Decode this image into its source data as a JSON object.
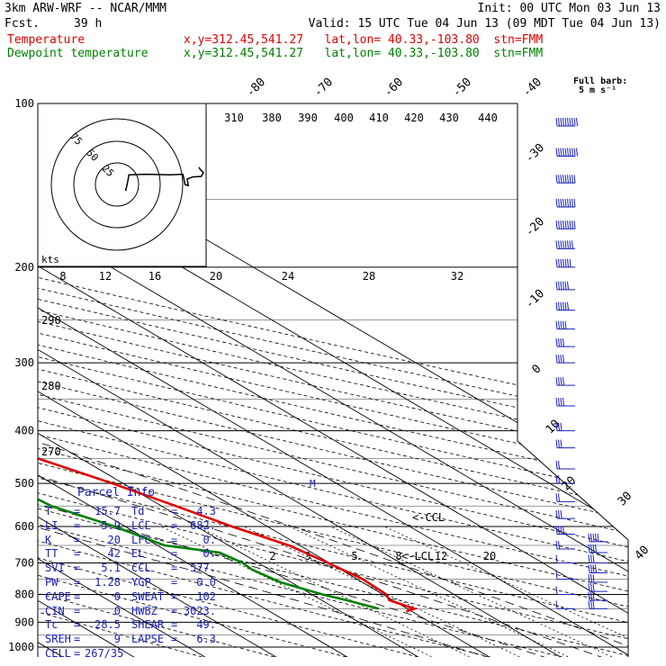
{
  "header": {
    "model": "3km ARW-WRF -- NCAR/MMM",
    "init": "Init: 00 UTC Mon 03 Jun 13",
    "fcst_label": "Fcst.",
    "fcst_value": "39 h",
    "valid": "Valid: 15 UTC Tue 04 Jun 13 (09 MDT Tue 04 Jun 13)",
    "series": [
      {
        "name": "Temperature",
        "location": "x,y=312.45,541.27   lat,lon= 40.33,-103.80  stn=FMM",
        "color": "#e00000"
      },
      {
        "name": "Dewpoint temperature",
        "location": "x,y=312.45,541.27   lat,lon= 40.33,-103.80  stn=FMM",
        "color": "#008000"
      }
    ]
  },
  "colors": {
    "temperature": "#e00000",
    "dewpoint": "#008000",
    "axis": "#000000",
    "parcel_text": "#1a20b8",
    "hodograph": "#000000",
    "barbs": "#1a20b8"
  },
  "barb_legend": {
    "line1": "Full barb:",
    "line2": "5 m s⁻¹"
  },
  "chart_data": {
    "type": "line",
    "title": "",
    "ylabel_ticks": [
      100,
      200,
      300,
      400,
      500,
      600,
      700,
      800,
      900,
      1000
    ],
    "isotherm_labels_top": [
      "-80",
      "-70",
      "-60",
      "-50",
      "-40"
    ],
    "isotherm_labels_right": [
      "-30",
      "-20",
      "-10",
      "0",
      "10",
      "20",
      "30",
      "40"
    ],
    "theta_e_labels": [
      "310",
      "380",
      "390",
      "400",
      "410",
      "420",
      "430",
      "440"
    ],
    "theta_labels_left": [
      "290",
      "280",
      "270"
    ],
    "mixing_ratio_labels": [
      "2",
      "3",
      "5",
      "8",
      "12",
      "20"
    ],
    "hodo_speed_labels": [
      "8",
      "12",
      "16",
      "20",
      "24",
      "28",
      "32"
    ],
    "hodo_ring_labels": [
      "75",
      "50",
      "25"
    ],
    "hodo_unit": "kts",
    "markers": {
      "ccl": "<-CCL",
      "lcl": "<-LCL",
      "mark": "M"
    },
    "series": [
      {
        "name": "Temperature",
        "points": [
          [
            860,
            -0.8
          ],
          [
            850,
            1.0
          ],
          [
            820,
            -0.5
          ],
          [
            800,
            0.5
          ],
          [
            750,
            0.8
          ],
          [
            700,
            -0.2
          ],
          [
            650,
            -1.5
          ],
          [
            600,
            -5.0
          ],
          [
            550,
            -8.0
          ],
          [
            500,
            -11.5
          ],
          [
            450,
            -16.0
          ],
          [
            400,
            -22.0
          ],
          [
            350,
            -29.0
          ],
          [
            300,
            -38.0
          ],
          [
            250,
            -48.0
          ],
          [
            220,
            -55.0
          ],
          [
            200,
            -58.0
          ],
          [
            170,
            -60.0
          ],
          [
            150,
            -62.0
          ],
          [
            130,
            -64.5
          ],
          [
            110,
            -69.0
          ],
          [
            100,
            -72.0
          ]
        ]
      },
      {
        "name": "Dewpoint temperature",
        "points": [
          [
            850,
            -4.0
          ],
          [
            820,
            -6.5
          ],
          [
            800,
            -8.5
          ],
          [
            760,
            -11.5
          ],
          [
            720,
            -12.5
          ],
          [
            700,
            -12.2
          ],
          [
            670,
            -13.0
          ],
          [
            650,
            -19.0
          ],
          [
            600,
            -21.5
          ],
          [
            550,
            -25.5
          ],
          [
            500,
            -26.5
          ],
          [
            450,
            -31.5
          ],
          [
            400,
            -40.0
          ],
          [
            350,
            -51.0
          ],
          [
            300,
            -65.0
          ],
          [
            250,
            -70.0
          ],
          [
            200,
            -73.0
          ],
          [
            150,
            -78.0
          ],
          [
            120,
            -79.0
          ],
          [
            100,
            -80.5
          ]
        ]
      }
    ],
    "hodograph": [
      [
        0.8,
        -1.2
      ],
      [
        1.0,
        0.6
      ],
      [
        1.1,
        1.8
      ],
      [
        2.7,
        1.9
      ],
      [
        4.9,
        1.8
      ],
      [
        6.1,
        1.9
      ],
      [
        6.2,
        1.0
      ],
      [
        6.3,
        0.0
      ],
      [
        6.6,
        -0.2
      ],
      [
        6.5,
        1.0
      ],
      [
        7.0,
        1.4
      ],
      [
        7.8,
        1.5
      ],
      [
        8.0,
        2.2
      ],
      [
        7.7,
        2.8
      ],
      [
        7.6,
        3.2
      ]
    ],
    "wind_barbs_right": [
      [
        110,
        10
      ],
      [
        125,
        10
      ],
      [
        140,
        9
      ],
      [
        155,
        9
      ],
      [
        170,
        9
      ],
      [
        185,
        8
      ],
      [
        200,
        7
      ],
      [
        220,
        6
      ],
      [
        240,
        6
      ],
      [
        260,
        5
      ],
      [
        280,
        4
      ],
      [
        300,
        4
      ],
      [
        330,
        4
      ],
      [
        360,
        4
      ],
      [
        400,
        3
      ],
      [
        430,
        3
      ],
      [
        470,
        2
      ],
      [
        500,
        2
      ],
      [
        540,
        2
      ],
      [
        580,
        3
      ],
      [
        620,
        4
      ],
      [
        660,
        2
      ],
      [
        700,
        1
      ],
      [
        750,
        1
      ],
      [
        800,
        1
      ],
      [
        850,
        1
      ]
    ],
    "wind_barbs_hodo_col": [
      [
        640,
        5
      ],
      [
        670,
        4
      ],
      [
        700,
        3
      ],
      [
        730,
        4
      ],
      [
        760,
        3
      ],
      [
        790,
        3
      ],
      [
        820,
        3
      ],
      [
        850,
        3
      ]
    ]
  },
  "parcel_info": {
    "title": "Parcel Info",
    "rows": [
      {
        "k1": "T",
        "v1": "15.7",
        "k2": "Td",
        "v2": "4.3"
      },
      {
        "k1": "LI",
        "v1": "5.9",
        "k2": "LCL",
        "v2": "682."
      },
      {
        "k1": "K",
        "v1": "20",
        "k2": "LFC",
        "v2": "0."
      },
      {
        "k1": "TT",
        "v1": "42",
        "k2": "EL",
        "v2": "0."
      },
      {
        "k1": "SVI",
        "v1": "5.1",
        "k2": "CCL",
        "v2": "577."
      },
      {
        "k1": "PW",
        "v1": "1.28",
        "k2": "YGP",
        "v2": "0.0"
      },
      {
        "k1": "CAPE",
        "v1": "0",
        "k2": "SWEAT",
        "v2": "102"
      },
      {
        "k1": "CIN",
        "v1": "0",
        "k2": "HWBZ",
        "v2": "3023."
      },
      {
        "k1": "Tc",
        "v1": "28.5",
        "k2": "SHEAR",
        "v2": "49."
      },
      {
        "k1": "SREH",
        "v1": "9",
        "k2": "LAPSE",
        "v2": "6.3"
      },
      {
        "k1": "CELL",
        "v1": "267/35",
        "k2": "",
        "v2": ""
      }
    ]
  }
}
